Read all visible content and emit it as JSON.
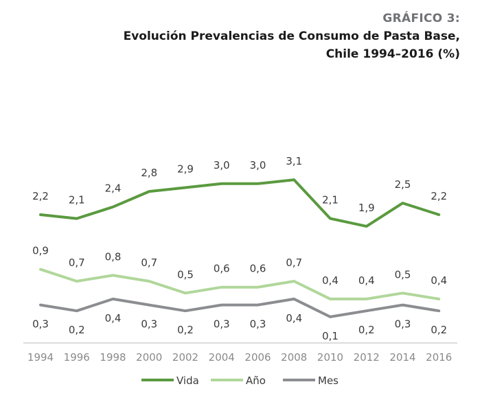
{
  "header": {
    "kicker": "GRÁFICO 3:",
    "title_line1": "Evolución Prevalencias de Consumo de Pasta Base,",
    "title_line2": "Chile 1994–2016 (%)"
  },
  "colors": {
    "vida": "#5a9a3f",
    "anio": "#b0d79a",
    "mes": "#8c8d90",
    "axis": "#c8c8c8"
  },
  "chart_data": {
    "type": "line",
    "title": "Evolución Prevalencias de Consumo de Pasta Base, Chile 1994–2016 (%)",
    "categories": [
      "1994",
      "1996",
      "1998",
      "2000",
      "2002",
      "2004",
      "2006",
      "2008",
      "2010",
      "2012",
      "2014",
      "2016"
    ],
    "series": [
      {
        "name": "Vida",
        "values": [
          2.2,
          2.1,
          2.4,
          2.8,
          2.9,
          3.0,
          3.0,
          3.1,
          2.1,
          1.9,
          2.5,
          2.2
        ],
        "labels": [
          "2,2",
          "2,1",
          "2,4",
          "2,8",
          "2,9",
          "3,0",
          "3,0",
          "3,1",
          "2,1",
          "1,9",
          "2,5",
          "2,2"
        ]
      },
      {
        "name": "Año",
        "values": [
          0.9,
          0.7,
          0.8,
          0.7,
          0.5,
          0.6,
          0.6,
          0.7,
          0.4,
          0.4,
          0.5,
          0.4
        ],
        "labels": [
          "0,9",
          "0,7",
          "0,8",
          "0,7",
          "0,5",
          "0,6",
          "0,6",
          "0,7",
          "0,4",
          "0,4",
          "0,5",
          "0,4"
        ]
      },
      {
        "name": "Mes",
        "values": [
          0.3,
          0.2,
          0.4,
          0.3,
          0.2,
          0.3,
          0.3,
          0.4,
          0.1,
          0.2,
          0.3,
          0.2
        ],
        "labels": [
          "0,3",
          "0,2",
          "0,4",
          "0,3",
          "0,2",
          "0,3",
          "0,3",
          "0,4",
          "0,1",
          "0,2",
          "0,3",
          "0,2"
        ]
      }
    ],
    "legend_position": "bottom",
    "grid": false
  }
}
